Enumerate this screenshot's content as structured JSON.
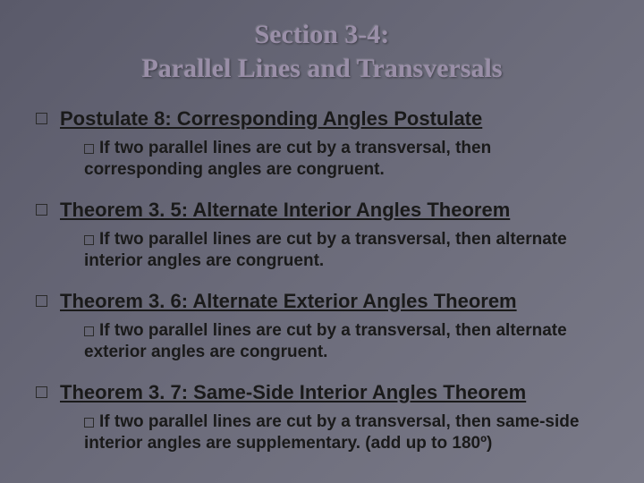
{
  "slide": {
    "title_line1": "Section 3-4:",
    "title_line2": "Parallel Lines and Transversals",
    "items": [
      {
        "heading": "Postulate 8: Corresponding Angles Postulate",
        "sub": "If two parallel lines are cut by a transversal, then corresponding angles are congruent."
      },
      {
        "heading": "Theorem 3. 5: Alternate Interior Angles Theorem",
        "sub": "If two parallel lines are cut by a transversal, then alternate interior angles are congruent."
      },
      {
        "heading": "Theorem 3. 6: Alternate Exterior Angles Theorem",
        "sub": "If two parallel lines are cut by a transversal, then alternate exterior angles are congruent."
      },
      {
        "heading": "Theorem 3. 7: Same-Side Interior Angles Theorem",
        "sub": "If two parallel lines are cut by a transversal, then same-side interior angles are supplementary. (add up to 180º)"
      }
    ]
  },
  "colors": {
    "bg_start": "#5a5a6a",
    "bg_end": "#7a7a88",
    "title_color": "#9a8fa8",
    "text_color": "#1a1a1a"
  },
  "typography": {
    "title_fontsize": 30,
    "heading_fontsize": 22,
    "sub_fontsize": 19,
    "title_family": "Georgia, serif",
    "body_family": "Arial, sans-serif"
  }
}
